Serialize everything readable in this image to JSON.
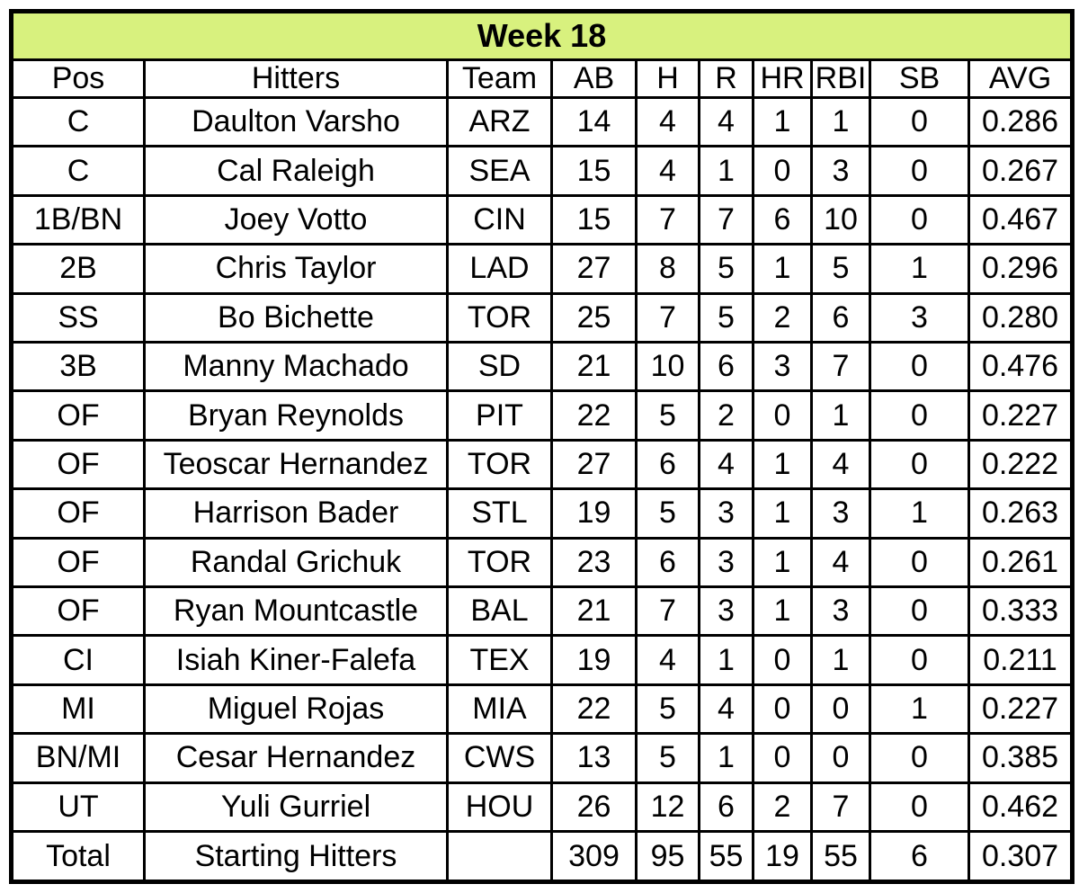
{
  "colors": {
    "title_bg": "#d8f17e",
    "border": "#000000",
    "cell_bg": "#ffffff",
    "text": "#000000"
  },
  "chart_data": {
    "type": "table",
    "title": "Week 18",
    "columns": [
      "Pos",
      "Hitters",
      "Team",
      "AB",
      "H",
      "R",
      "HR",
      "RBI",
      "SB",
      "AVG"
    ],
    "rows": [
      [
        "C",
        "Daulton Varsho",
        "ARZ",
        14,
        4,
        4,
        1,
        1,
        0,
        "0.286"
      ],
      [
        "C",
        "Cal Raleigh",
        "SEA",
        15,
        4,
        1,
        0,
        3,
        0,
        "0.267"
      ],
      [
        "1B/BN",
        "Joey Votto",
        "CIN",
        15,
        7,
        7,
        6,
        10,
        0,
        "0.467"
      ],
      [
        "2B",
        "Chris Taylor",
        "LAD",
        27,
        8,
        5,
        1,
        5,
        1,
        "0.296"
      ],
      [
        "SS",
        "Bo Bichette",
        "TOR",
        25,
        7,
        5,
        2,
        6,
        3,
        "0.280"
      ],
      [
        "3B",
        "Manny Machado",
        "SD",
        21,
        10,
        6,
        3,
        7,
        0,
        "0.476"
      ],
      [
        "OF",
        "Bryan Reynolds",
        "PIT",
        22,
        5,
        2,
        0,
        1,
        0,
        "0.227"
      ],
      [
        "OF",
        "Teoscar Hernandez",
        "TOR",
        27,
        6,
        4,
        1,
        4,
        0,
        "0.222"
      ],
      [
        "OF",
        "Harrison Bader",
        "STL",
        19,
        5,
        3,
        1,
        3,
        1,
        "0.263"
      ],
      [
        "OF",
        "Randal Grichuk",
        "TOR",
        23,
        6,
        3,
        1,
        4,
        0,
        "0.261"
      ],
      [
        "OF",
        "Ryan Mountcastle",
        "BAL",
        21,
        7,
        3,
        1,
        3,
        0,
        "0.333"
      ],
      [
        "CI",
        "Isiah Kiner-Falefa",
        "TEX",
        19,
        4,
        1,
        0,
        1,
        0,
        "0.211"
      ],
      [
        "MI",
        "Miguel Rojas",
        "MIA",
        22,
        5,
        4,
        0,
        0,
        1,
        "0.227"
      ],
      [
        "BN/MI",
        "Cesar Hernandez",
        "CWS",
        13,
        5,
        1,
        0,
        0,
        0,
        "0.385"
      ],
      [
        "UT",
        "Yuli Gurriel",
        "HOU",
        26,
        12,
        6,
        2,
        7,
        0,
        "0.462"
      ]
    ],
    "total_row": [
      "Total",
      "Starting Hitters",
      "",
      309,
      95,
      55,
      19,
      55,
      6,
      "0.307"
    ]
  }
}
